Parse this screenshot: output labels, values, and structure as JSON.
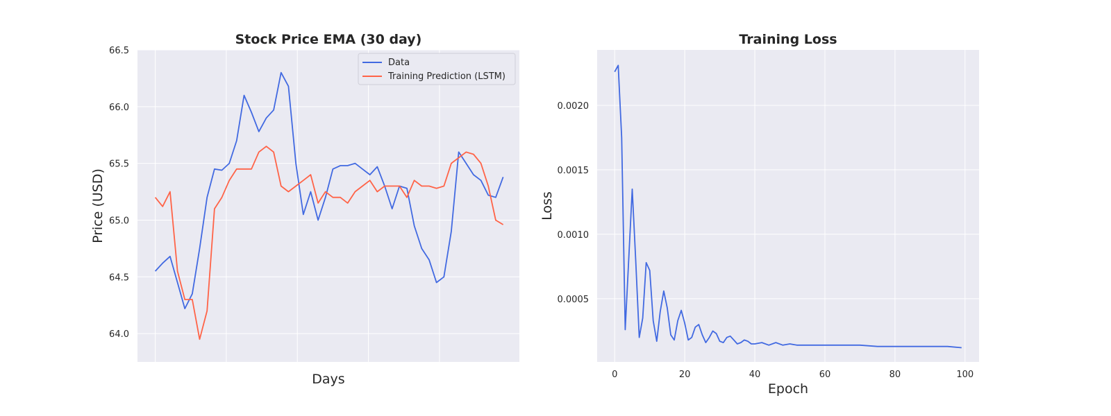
{
  "chart_data": [
    {
      "type": "line",
      "title": "Stock Price EMA (30 day)",
      "xlabel": "Days",
      "ylabel": "Price (USD)",
      "xlim": [
        -12,
        246
      ],
      "ylim": [
        63.75,
        66.5
      ],
      "yticks": [
        "64.0",
        "64.5",
        "65.0",
        "65.5",
        "66.0",
        "66.5"
      ],
      "grid": true,
      "legend_position": "top-right",
      "colors": {
        "data": "#4169e1",
        "prediction": "#ff6347",
        "axes_bg": "#eaeaf2",
        "grid": "#ffffff"
      },
      "x": [
        0,
        5,
        10,
        15,
        20,
        25,
        30,
        35,
        40,
        45,
        50,
        55,
        60,
        65,
        70,
        75,
        80,
        85,
        90,
        95,
        100,
        105,
        110,
        115,
        120,
        125,
        130,
        135,
        140,
        145,
        150,
        155,
        160,
        165,
        170,
        175,
        180,
        185,
        190,
        195,
        200,
        205,
        210,
        215,
        220,
        225,
        230,
        235
      ],
      "series": [
        {
          "name": "Data",
          "values": [
            64.55,
            64.62,
            64.68,
            64.45,
            64.22,
            64.35,
            64.75,
            65.2,
            65.45,
            65.44,
            65.5,
            65.7,
            66.1,
            65.95,
            65.78,
            65.9,
            65.97,
            66.3,
            66.18,
            65.5,
            65.05,
            65.25,
            65.0,
            65.2,
            65.45,
            65.48,
            65.48,
            65.5,
            65.45,
            65.4,
            65.47,
            65.3,
            65.1,
            65.3,
            65.28,
            64.95,
            64.75,
            64.65,
            64.45,
            64.5,
            64.9,
            65.6,
            65.5,
            65.4,
            65.35,
            65.22,
            65.2,
            65.38
          ]
        },
        {
          "name": "Training Prediction (LSTM)",
          "values": [
            65.2,
            65.12,
            65.25,
            64.55,
            64.3,
            64.3,
            63.95,
            64.2,
            65.1,
            65.2,
            65.35,
            65.45,
            65.45,
            65.45,
            65.6,
            65.65,
            65.6,
            65.3,
            65.25,
            65.3,
            65.35,
            65.4,
            65.15,
            65.25,
            65.2,
            65.2,
            65.15,
            65.25,
            65.3,
            65.35,
            65.25,
            65.3,
            65.3,
            65.3,
            65.2,
            65.35,
            65.3,
            65.3,
            65.28,
            65.3,
            65.5,
            65.55,
            65.6,
            65.58,
            65.5,
            65.3,
            65.0,
            64.96
          ]
        }
      ]
    },
    {
      "type": "line",
      "title": "Training Loss",
      "xlabel": "Epoch",
      "ylabel": "Loss",
      "xlim": [
        -5,
        104
      ],
      "ylim": [
        1e-05,
        0.00243
      ],
      "xticks": [
        "0",
        "20",
        "40",
        "60",
        "80",
        "100"
      ],
      "yticks": [
        "0.0005",
        "0.0010",
        "0.0015",
        "0.0020"
      ],
      "grid": true,
      "colors": {
        "line": "#4169e1",
        "axes_bg": "#eaeaf2",
        "grid": "#ffffff"
      },
      "x": [
        0,
        1,
        2,
        3,
        4,
        5,
        6,
        7,
        8,
        9,
        10,
        11,
        12,
        13,
        14,
        15,
        16,
        17,
        18,
        19,
        20,
        21,
        22,
        23,
        24,
        25,
        26,
        27,
        28,
        29,
        30,
        31,
        32,
        33,
        34,
        35,
        36,
        37,
        38,
        39,
        40,
        42,
        44,
        46,
        48,
        50,
        52,
        55,
        58,
        60,
        65,
        70,
        75,
        80,
        85,
        90,
        95,
        99
      ],
      "series": [
        {
          "name": "",
          "values": [
            0.00226,
            0.00231,
            0.00175,
            0.00026,
            0.0008,
            0.00135,
            0.0008,
            0.0002,
            0.00035,
            0.00078,
            0.00072,
            0.00033,
            0.00017,
            0.0004,
            0.00056,
            0.00043,
            0.00022,
            0.00018,
            0.00033,
            0.00041,
            0.00031,
            0.00018,
            0.0002,
            0.00028,
            0.0003,
            0.00022,
            0.00016,
            0.0002,
            0.00025,
            0.00023,
            0.00017,
            0.00016,
            0.0002,
            0.00021,
            0.00018,
            0.00015,
            0.00016,
            0.00018,
            0.00017,
            0.00015,
            0.00015,
            0.00016,
            0.00014,
            0.00016,
            0.00014,
            0.00015,
            0.00014,
            0.00014,
            0.00014,
            0.00014,
            0.00014,
            0.00014,
            0.00013,
            0.00013,
            0.00013,
            0.00013,
            0.00013,
            0.00012
          ]
        }
      ]
    }
  ]
}
